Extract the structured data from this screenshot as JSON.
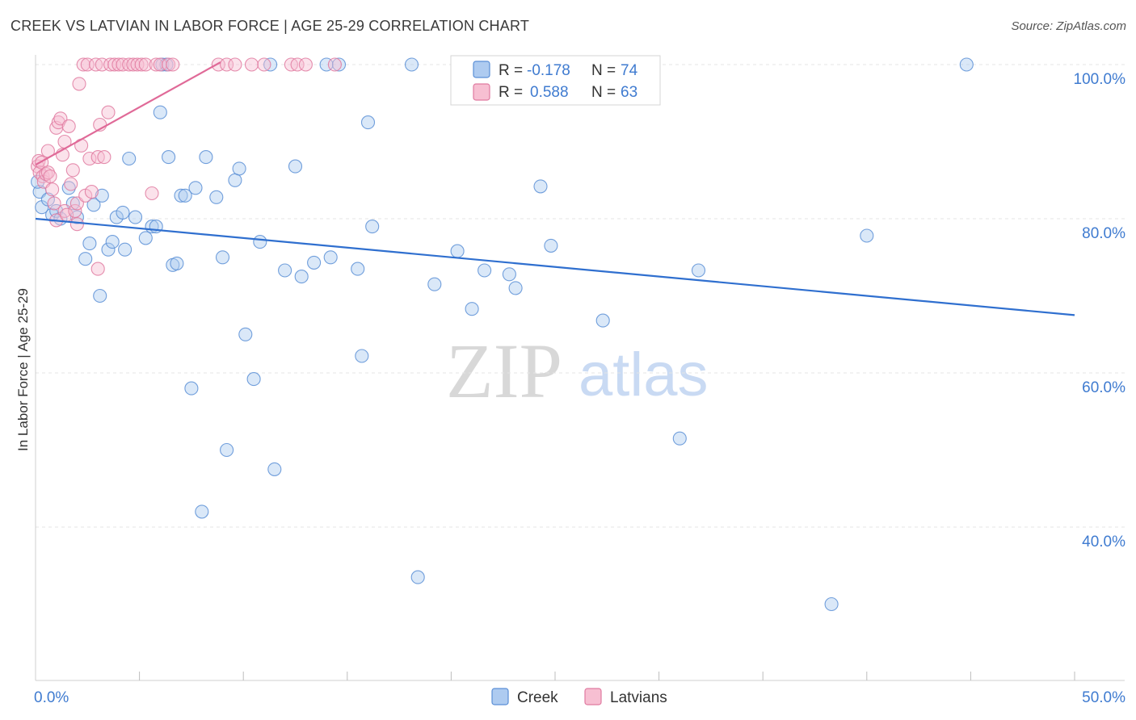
{
  "chart_data": {
    "type": "scatter",
    "title": "CREEK VS LATVIAN IN LABOR FORCE | AGE 25-29 CORRELATION CHART",
    "source": "Source: ZipAtlas.com",
    "xlabel": "",
    "ylabel": "In Labor Force | Age 25-29",
    "xlim": [
      0,
      50
    ],
    "ylim": [
      20,
      103
    ],
    "x_tick_labels": {
      "min": "0.0%",
      "max": "50.0%"
    },
    "y_ticks": [
      {
        "value": 100,
        "label": "100.0%"
      },
      {
        "value": 80,
        "label": "80.0%"
      },
      {
        "value": 60,
        "label": "60.0%"
      },
      {
        "value": 40,
        "label": "40.0%"
      }
    ],
    "watermark": {
      "part1": "ZIP",
      "part2": "atlas"
    },
    "legend": {
      "r_label": "R =",
      "n_label": "N ="
    },
    "series": [
      {
        "name": "Creek",
        "color": "#5b8fd6",
        "fill": "#aecbf0",
        "r_value": "-0.178",
        "n_value": "74",
        "trend": {
          "x": [
            0,
            50
          ],
          "y": [
            80.0,
            67.5
          ]
        },
        "points": [
          [
            0.2,
            83.5
          ],
          [
            0.3,
            81.5
          ],
          [
            0.6,
            82.5
          ],
          [
            0.8,
            80.5
          ],
          [
            1.0,
            81.0
          ],
          [
            1.2,
            80.0
          ],
          [
            1.6,
            84.0
          ],
          [
            1.8,
            82.0
          ],
          [
            2.0,
            80.2
          ],
          [
            2.4,
            74.8
          ],
          [
            2.6,
            76.8
          ],
          [
            2.8,
            81.8
          ],
          [
            3.1,
            70.0
          ],
          [
            3.2,
            83.0
          ],
          [
            3.5,
            76.0
          ],
          [
            3.7,
            77.0
          ],
          [
            3.9,
            80.2
          ],
          [
            4.2,
            80.8
          ],
          [
            4.3,
            76.0
          ],
          [
            4.5,
            87.8
          ],
          [
            4.8,
            80.2
          ],
          [
            5.3,
            77.5
          ],
          [
            5.6,
            79.0
          ],
          [
            5.8,
            79.0
          ],
          [
            6.0,
            93.8
          ],
          [
            6.1,
            100
          ],
          [
            6.3,
            100
          ],
          [
            6.4,
            88.0
          ],
          [
            6.6,
            74.0
          ],
          [
            6.8,
            74.2
          ],
          [
            7.0,
            83.0
          ],
          [
            7.2,
            83.0
          ],
          [
            7.5,
            58.0
          ],
          [
            7.7,
            84.0
          ],
          [
            8.0,
            42.0
          ],
          [
            8.2,
            88.0
          ],
          [
            8.7,
            82.8
          ],
          [
            9.0,
            75.0
          ],
          [
            9.2,
            50.0
          ],
          [
            9.6,
            85.0
          ],
          [
            9.8,
            86.5
          ],
          [
            10.1,
            65.0
          ],
          [
            10.5,
            59.2
          ],
          [
            10.8,
            77.0
          ],
          [
            11.3,
            100
          ],
          [
            11.5,
            47.5
          ],
          [
            12.0,
            73.3
          ],
          [
            12.5,
            86.8
          ],
          [
            12.8,
            72.5
          ],
          [
            13.4,
            74.3
          ],
          [
            14.0,
            100
          ],
          [
            14.2,
            75.0
          ],
          [
            14.6,
            100
          ],
          [
            15.5,
            73.5
          ],
          [
            15.7,
            62.2
          ],
          [
            16.0,
            92.5
          ],
          [
            16.2,
            79.0
          ],
          [
            18.1,
            100
          ],
          [
            18.4,
            33.5
          ],
          [
            19.2,
            71.5
          ],
          [
            20.3,
            75.8
          ],
          [
            21.0,
            68.3
          ],
          [
            21.6,
            73.3
          ],
          [
            22.8,
            72.8
          ],
          [
            23.1,
            71.0
          ],
          [
            24.3,
            84.2
          ],
          [
            24.8,
            76.5
          ],
          [
            27.3,
            66.8
          ],
          [
            31.0,
            51.5
          ],
          [
            31.9,
            73.3
          ],
          [
            38.3,
            30.0
          ],
          [
            40.0,
            77.8
          ],
          [
            44.8,
            100
          ],
          [
            0.1,
            84.8
          ]
        ]
      },
      {
        "name": "Latvians",
        "color": "#e07aa0",
        "fill": "#f7bfd2",
        "r_value": "0.588",
        "n_value": "63",
        "trend": {
          "x": [
            0,
            8.9
          ],
          "y": [
            87.0,
            100.3
          ]
        },
        "points": [
          [
            0.1,
            86.8
          ],
          [
            0.15,
            87.5
          ],
          [
            0.2,
            86.0
          ],
          [
            0.3,
            87.3
          ],
          [
            0.35,
            85.5
          ],
          [
            0.4,
            84.8
          ],
          [
            0.5,
            85.8
          ],
          [
            0.6,
            86.0
          ],
          [
            0.7,
            85.5
          ],
          [
            0.8,
            83.8
          ],
          [
            0.6,
            88.8
          ],
          [
            0.9,
            82.0
          ],
          [
            1.0,
            79.8
          ],
          [
            1.0,
            91.8
          ],
          [
            1.1,
            92.5
          ],
          [
            1.2,
            93.0
          ],
          [
            1.3,
            88.3
          ],
          [
            1.4,
            81.0
          ],
          [
            1.4,
            90.0
          ],
          [
            1.5,
            80.5
          ],
          [
            1.6,
            92.0
          ],
          [
            1.7,
            84.5
          ],
          [
            1.8,
            86.3
          ],
          [
            1.9,
            81.0
          ],
          [
            2.0,
            79.3
          ],
          [
            2.0,
            82.0
          ],
          [
            2.1,
            97.5
          ],
          [
            2.2,
            89.5
          ],
          [
            2.3,
            100
          ],
          [
            2.5,
            100
          ],
          [
            2.4,
            83.0
          ],
          [
            2.6,
            87.8
          ],
          [
            2.7,
            83.5
          ],
          [
            2.9,
            100
          ],
          [
            3.0,
            88.0
          ],
          [
            3.2,
            100
          ],
          [
            3.0,
            73.5
          ],
          [
            3.3,
            88.0
          ],
          [
            3.1,
            92.2
          ],
          [
            3.5,
            93.8
          ],
          [
            3.6,
            100
          ],
          [
            3.8,
            100
          ],
          [
            4.0,
            100
          ],
          [
            4.2,
            100
          ],
          [
            4.5,
            100
          ],
          [
            4.7,
            100
          ],
          [
            4.9,
            100
          ],
          [
            5.1,
            100
          ],
          [
            5.3,
            100
          ],
          [
            5.6,
            83.3
          ],
          [
            5.8,
            100
          ],
          [
            6.0,
            100
          ],
          [
            6.4,
            100
          ],
          [
            6.6,
            100
          ],
          [
            8.8,
            100
          ],
          [
            9.2,
            100
          ],
          [
            9.6,
            100
          ],
          [
            10.4,
            100
          ],
          [
            11.0,
            100
          ],
          [
            12.3,
            100
          ],
          [
            12.6,
            100
          ],
          [
            13.0,
            100
          ],
          [
            14.4,
            100
          ]
        ]
      }
    ]
  }
}
